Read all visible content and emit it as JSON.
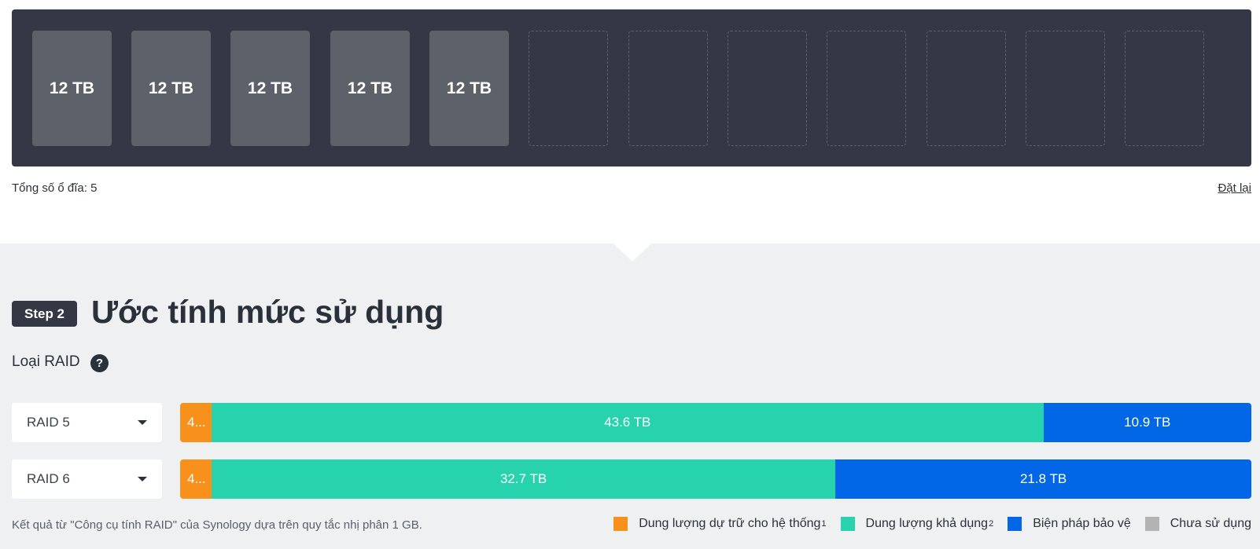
{
  "drive_bays": [
    {
      "capacity": "12 TB",
      "filled": true
    },
    {
      "capacity": "12 TB",
      "filled": true
    },
    {
      "capacity": "12 TB",
      "filled": true
    },
    {
      "capacity": "12 TB",
      "filled": true
    },
    {
      "capacity": "12 TB",
      "filled": true
    },
    {
      "capacity": "",
      "filled": false
    },
    {
      "capacity": "",
      "filled": false
    },
    {
      "capacity": "",
      "filled": false
    },
    {
      "capacity": "",
      "filled": false
    },
    {
      "capacity": "",
      "filled": false
    },
    {
      "capacity": "",
      "filled": false
    },
    {
      "capacity": "",
      "filled": false
    }
  ],
  "summary": {
    "total_drives": "Tổng số ổ đĩa: 5",
    "reset_label": "Đặt lại"
  },
  "step": {
    "badge": "Step 2",
    "title": "Ước tính mức sử dụng"
  },
  "raid_section": {
    "label": "Loại RAID",
    "help_glyph": "?"
  },
  "raid_rows": [
    {
      "type": "RAID 5",
      "reserved_label": "4...",
      "available_label": "43.6 TB",
      "available_tb": 43.6,
      "protection_label": "10.9 TB",
      "protection_tb": 10.9
    },
    {
      "type": "RAID 6",
      "reserved_label": "4...",
      "available_label": "32.7 TB",
      "available_tb": 32.7,
      "protection_label": "21.8 TB",
      "protection_tb": 21.8
    }
  ],
  "footnote": "Kết quả từ \"Công cụ tính RAID\" của Synology dựa trên quy tắc nhị phân 1 GB.",
  "legend": {
    "reserved": {
      "label": "Dung lượng dự trữ cho hệ thống",
      "sup": "1",
      "color": "#f8901c"
    },
    "available": {
      "label": "Dung lượng khả dụng",
      "sup": "2",
      "color": "#26d3ac"
    },
    "protection": {
      "label": "Biện pháp bảo vệ",
      "color": "#0167e6"
    },
    "unused": {
      "label": "Chưa sử dụng",
      "color": "#b3b3b3"
    }
  }
}
